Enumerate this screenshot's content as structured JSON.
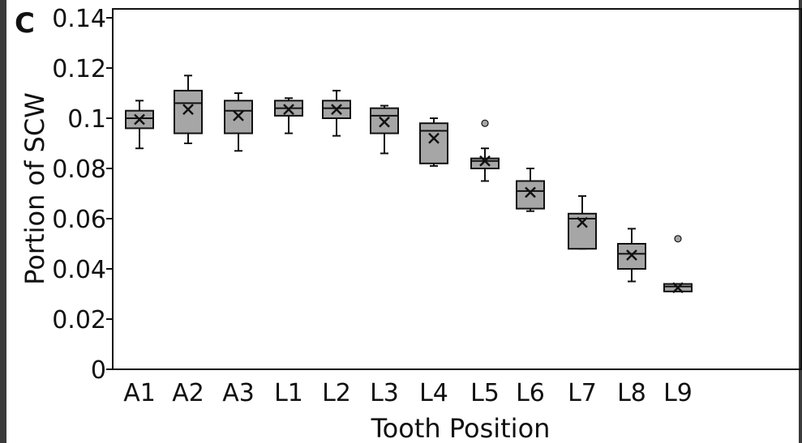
{
  "panel_label": "C",
  "chart_data": {
    "type": "box",
    "xlabel": "Tooth Position",
    "ylabel": "Portion of SCW",
    "ylim": [
      0,
      0.14
    ],
    "yticks": [
      0,
      0.02,
      0.04,
      0.06,
      0.08,
      0.1,
      0.12,
      0.14
    ],
    "ytick_labels": [
      "0",
      "0.02",
      "0.04",
      "0.06",
      "0.08",
      "0.1",
      "0.12",
      "0.14"
    ],
    "categories": [
      "A1",
      "A2",
      "A3",
      "L1",
      "L2",
      "L3",
      "L4",
      "L5",
      "L6",
      "L7",
      "L8",
      "L9"
    ],
    "boxes": [
      {
        "label": "A1",
        "whisker_low": 0.088,
        "q1": 0.096,
        "median": 0.1,
        "q3": 0.103,
        "whisker_high": 0.107,
        "mean": 0.0995,
        "outliers": []
      },
      {
        "label": "A2",
        "whisker_low": 0.09,
        "q1": 0.094,
        "median": 0.106,
        "q3": 0.111,
        "whisker_high": 0.117,
        "mean": 0.1035,
        "outliers": []
      },
      {
        "label": "A3",
        "whisker_low": 0.087,
        "q1": 0.094,
        "median": 0.103,
        "q3": 0.107,
        "whisker_high": 0.11,
        "mean": 0.101,
        "outliers": []
      },
      {
        "label": "L1",
        "whisker_low": 0.094,
        "q1": 0.101,
        "median": 0.104,
        "q3": 0.107,
        "whisker_high": 0.108,
        "mean": 0.1035,
        "outliers": []
      },
      {
        "label": "L2",
        "whisker_low": 0.093,
        "q1": 0.1,
        "median": 0.104,
        "q3": 0.107,
        "whisker_high": 0.111,
        "mean": 0.1035,
        "outliers": []
      },
      {
        "label": "L3",
        "whisker_low": 0.086,
        "q1": 0.094,
        "median": 0.101,
        "q3": 0.104,
        "whisker_high": 0.105,
        "mean": 0.0985,
        "outliers": []
      },
      {
        "label": "L4",
        "whisker_low": 0.081,
        "q1": 0.082,
        "median": 0.095,
        "q3": 0.098,
        "whisker_high": 0.1,
        "mean": 0.092,
        "outliers": []
      },
      {
        "label": "L5",
        "whisker_low": 0.075,
        "q1": 0.08,
        "median": 0.083,
        "q3": 0.084,
        "whisker_high": 0.088,
        "mean": 0.083,
        "outliers": [
          0.098
        ]
      },
      {
        "label": "L6",
        "whisker_low": 0.063,
        "q1": 0.064,
        "median": 0.071,
        "q3": 0.075,
        "whisker_high": 0.08,
        "mean": 0.0705,
        "outliers": []
      },
      {
        "label": "L7",
        "whisker_low": 0.048,
        "q1": 0.048,
        "median": 0.06,
        "q3": 0.062,
        "whisker_high": 0.069,
        "mean": 0.0585,
        "outliers": []
      },
      {
        "label": "L8",
        "whisker_low": 0.035,
        "q1": 0.04,
        "median": 0.046,
        "q3": 0.05,
        "whisker_high": 0.056,
        "mean": 0.0455,
        "outliers": []
      },
      {
        "label": "L9",
        "whisker_low": 0.031,
        "q1": 0.031,
        "median": 0.033,
        "q3": 0.034,
        "whisker_high": 0.034,
        "mean": 0.0325,
        "outliers": [
          0.052
        ]
      }
    ],
    "colors": {
      "box_fill": "#a6a6a6",
      "stroke": "#111111",
      "outlier_fill": "#a6a6a6",
      "page_edge": "#3a3a3a"
    },
    "grid": false,
    "legend": "none"
  }
}
